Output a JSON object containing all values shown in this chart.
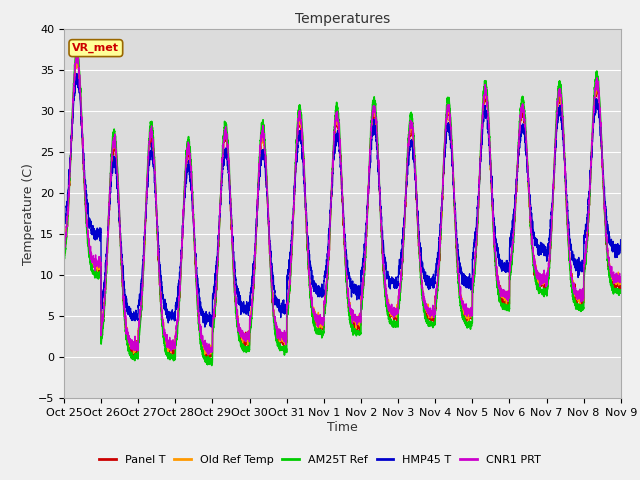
{
  "title": "Temperatures",
  "xlabel": "Time",
  "ylabel": "Temperature (C)",
  "ylim": [
    -5,
    40
  ],
  "yticks": [
    -5,
    0,
    5,
    10,
    15,
    20,
    25,
    30,
    35,
    40
  ],
  "x_tick_labels": [
    "Oct 25",
    "Oct 26",
    "Oct 27",
    "Oct 28",
    "Oct 29",
    "Oct 30",
    "Oct 31",
    "Nov 1",
    "Nov 2",
    "Nov 3",
    "Nov 4",
    "Nov 5",
    "Nov 6",
    "Nov 7",
    "Nov 8",
    "Nov 9"
  ],
  "series": [
    {
      "label": "Panel T",
      "color": "#cc0000",
      "lw": 1.0
    },
    {
      "label": "Old Ref Temp",
      "color": "#ff9900",
      "lw": 1.0
    },
    {
      "label": "AM25T Ref",
      "color": "#00cc00",
      "lw": 1.2
    },
    {
      "label": "HMP45 T",
      "color": "#0000cc",
      "lw": 1.0
    },
    {
      "label": "CNR1 PRT",
      "color": "#cc00cc",
      "lw": 1.0
    }
  ],
  "annotation_text": "VR_met",
  "annotation_color": "#cc0000",
  "annotation_bg": "#ffff99",
  "plot_bg": "#dcdcdc",
  "fig_bg": "#f0f0f0",
  "grid_color": "#ffffff",
  "title_fontsize": 10,
  "axis_fontsize": 9,
  "tick_fontsize": 8
}
